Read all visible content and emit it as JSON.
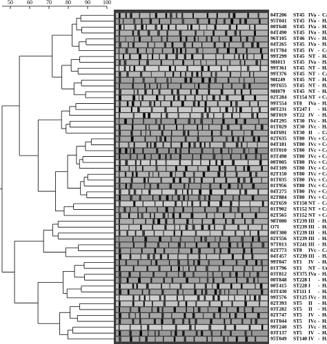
{
  "scale": {
    "lim": [
      50,
      100
    ],
    "ticks": [
      50,
      60,
      70,
      80,
      90,
      100
    ]
  },
  "rows": [
    [
      "04T206",
      "ST45",
      "IVa",
      "-",
      "CA"
    ],
    [
      "95T041",
      "ST45",
      "IVa",
      "-",
      "HA"
    ],
    [
      "00T648",
      "ST45",
      "IVa",
      "-",
      "HA"
    ],
    [
      "04T490",
      "ST45",
      "IVa",
      "-",
      "HA"
    ],
    [
      "96T105",
      "ST46",
      "IVc",
      "-",
      "HA"
    ],
    [
      "04T265",
      "ST45",
      "IVa",
      "-",
      "HA"
    ],
    [
      "01T784",
      "ST45",
      "IV",
      "-",
      "CA"
    ],
    [
      "99T299",
      "ST45",
      "NT",
      "-",
      "HA"
    ],
    [
      "98I013",
      "ST45",
      "IVa",
      "-",
      "HA"
    ],
    [
      "99T361",
      "ST45",
      "NT",
      "-",
      "HA"
    ],
    [
      "99T376",
      "ST45",
      "NT",
      "-",
      "CA"
    ],
    [
      "98I249",
      "ST45",
      "NT",
      "-",
      "HA"
    ],
    [
      "99T655",
      "ST45",
      "NT",
      "-",
      "HA"
    ],
    [
      "98I079",
      "ST45",
      "NT",
      "-",
      "HA"
    ],
    [
      "02T284",
      "ST154",
      "NT",
      "+",
      "CA"
    ],
    [
      "99T554",
      "ST8",
      "IVa",
      "-",
      "HA"
    ],
    [
      "00T231",
      "ST247",
      "I",
      "-",
      "HA"
    ],
    [
      "98T019",
      "ST22",
      "IV",
      "-",
      "HA"
    ],
    [
      "04T295",
      "ST30",
      "IVc",
      "-",
      "HA"
    ],
    [
      "01T029",
      "ST30",
      "IVc",
      "-",
      "HA"
    ],
    [
      "04T691",
      "ST30",
      "II",
      "-",
      "CA"
    ],
    [
      "02T635",
      "ST80",
      "IVc",
      "+",
      "CA"
    ],
    [
      "04T181",
      "ST80",
      "IVc",
      "+",
      "CA"
    ],
    [
      "03T010",
      "ST80",
      "IVc",
      "+",
      "CA"
    ],
    [
      "03T498",
      "ST80",
      "IVc",
      "+",
      "CA"
    ],
    [
      "00T005",
      "ST80",
      "IVc",
      "+",
      "CA"
    ],
    [
      "04T109",
      "ST80",
      "IVc",
      "+",
      "CA"
    ],
    [
      "02T150",
      "ST80",
      "IVc",
      "+",
      "CA"
    ],
    [
      "01T035",
      "ST80",
      "IVc",
      "+",
      "CA"
    ],
    [
      "01T956",
      "ST80",
      "IVc",
      "+",
      "CA"
    ],
    [
      "04T275",
      "ST80",
      "IVc",
      "+",
      "CA"
    ],
    [
      "02T884",
      "ST80",
      "IVc",
      "+",
      "CA"
    ],
    [
      "02T659",
      "ST150",
      "NT",
      "-",
      "CA"
    ],
    [
      "01T902",
      "ST152",
      "NT",
      "+",
      "CA"
    ],
    [
      "02T565",
      "ST152",
      "NT",
      "+",
      "CA"
    ],
    [
      "98T080",
      "ST239",
      "III",
      "-",
      "HA"
    ],
    [
      "O7I",
      "ST239",
      "III",
      "-",
      "HA"
    ],
    [
      "00T300",
      "ST239",
      "III",
      "-",
      "HA"
    ],
    [
      "02T556",
      "ST239",
      "III",
      "-",
      "HA"
    ],
    [
      "97T013",
      "ST241",
      "III",
      "-",
      "HA"
    ],
    [
      "02T773",
      "ST8",
      "IVc",
      "-",
      "CA"
    ],
    [
      "04T457",
      "ST239",
      "III",
      "-",
      "HA"
    ],
    [
      "99T047",
      "ST1",
      "IV",
      "-",
      "HA"
    ],
    [
      "01T796",
      "ST1",
      "NT",
      "-",
      "Un"
    ],
    [
      "03T812",
      "ST375",
      "IVa",
      "-",
      "HA"
    ],
    [
      "00T848",
      "ST228",
      "I",
      "-",
      "HA"
    ],
    [
      "00T415",
      "ST228",
      "I",
      "-",
      "HA"
    ],
    [
      "03T430",
      "ST111",
      "I",
      "-",
      "HA"
    ],
    [
      "99T576",
      "ST125",
      "IVc",
      "-",
      "HA"
    ],
    [
      "02T393",
      "ST5",
      "II",
      "-",
      "HA"
    ],
    [
      "03T282",
      "ST5",
      "II",
      "-",
      "HA"
    ],
    [
      "02T747",
      "ST5",
      "IV",
      "-",
      "HA"
    ],
    [
      "01T044",
      "ST5",
      "IVc",
      "-",
      "HA"
    ],
    [
      "99T240",
      "ST5",
      "IVc",
      "-",
      "HA"
    ],
    [
      "03T137",
      "ST5",
      "IV",
      "-",
      "HA"
    ],
    [
      "95T049",
      "ST140",
      "IV",
      "-",
      "HA"
    ]
  ]
}
